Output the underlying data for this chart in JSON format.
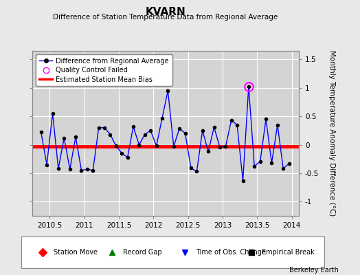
{
  "title": "KVARN",
  "subtitle": "Difference of Station Temperature Data from Regional Average",
  "ylabel_right": "Monthly Temperature Anomaly Difference (°C)",
  "background_color": "#e8e8e8",
  "plot_bg_color": "#d4d4d4",
  "grid_color": "white",
  "xlim": [
    2010.25,
    2014.1
  ],
  "ylim": [
    -1.25,
    1.65
  ],
  "yticks": [
    -1.0,
    -0.5,
    0.0,
    0.5,
    1.0,
    1.5
  ],
  "ytick_labels": [
    "-1",
    "-0.5",
    "0",
    "0.5",
    "1",
    "1.5"
  ],
  "xticks": [
    2010.5,
    2011.0,
    2011.5,
    2012.0,
    2012.5,
    2013.0,
    2013.5,
    2014.0
  ],
  "xtick_labels": [
    "2010.5",
    "2011",
    "2011.5",
    "2012",
    "2012.5",
    "2013",
    "2013.5",
    "2014"
  ],
  "bias_value": -0.03,
  "watermark": "Berkeley Earth",
  "x_values": [
    2010.375,
    2010.458,
    2010.542,
    2010.625,
    2010.708,
    2010.792,
    2010.875,
    2010.958,
    2011.042,
    2011.125,
    2011.208,
    2011.292,
    2011.375,
    2011.458,
    2011.542,
    2011.625,
    2011.708,
    2011.792,
    2011.875,
    2011.958,
    2012.042,
    2012.125,
    2012.208,
    2012.292,
    2012.375,
    2012.458,
    2012.542,
    2012.625,
    2012.708,
    2012.792,
    2012.875,
    2012.958,
    2013.042,
    2013.125,
    2013.208,
    2013.292,
    2013.375,
    2013.458,
    2013.542,
    2013.625,
    2013.708,
    2013.792,
    2013.875,
    2013.958
  ],
  "y_values": [
    0.22,
    -0.35,
    0.55,
    -0.42,
    0.12,
    -0.43,
    0.14,
    -0.45,
    -0.43,
    -0.45,
    0.3,
    0.3,
    0.18,
    -0.02,
    -0.15,
    -0.22,
    0.32,
    0.0,
    0.18,
    0.25,
    -0.02,
    0.47,
    0.95,
    -0.03,
    0.29,
    0.2,
    -0.41,
    -0.47,
    0.25,
    -0.12,
    0.31,
    -0.04,
    -0.03,
    0.43,
    0.35,
    -0.63,
    1.02,
    -0.38,
    -0.29,
    0.45,
    -0.32,
    0.35,
    -0.42,
    -0.33
  ],
  "qc_failed_x": [
    2013.375
  ],
  "qc_failed_y": [
    1.02
  ],
  "line_color": "blue",
  "marker_color": "black",
  "bias_color": "red",
  "qc_color": "magenta",
  "legend_top": [
    {
      "type": "line",
      "color": "blue",
      "marker": "o",
      "mfc": "black",
      "mec": "black",
      "ms": 4,
      "lw": 1.0,
      "label": "Difference from Regional Average"
    },
    {
      "type": "marker",
      "color": "none",
      "marker": "o",
      "mfc": "none",
      "mec": "magenta",
      "ms": 6,
      "lw": 0,
      "label": "Quality Control Failed"
    },
    {
      "type": "line",
      "color": "red",
      "marker": "none",
      "mfc": "none",
      "mec": "none",
      "ms": 0,
      "lw": 2.5,
      "label": "Estimated Station Mean Bias"
    }
  ],
  "legend_bottom": [
    {
      "marker": "D",
      "color": "red",
      "label": "Station Move"
    },
    {
      "marker": "^",
      "color": "green",
      "label": "Record Gap"
    },
    {
      "marker": "v",
      "color": "blue",
      "label": "Time of Obs. Change"
    },
    {
      "marker": "s",
      "color": "black",
      "label": "Empirical Break"
    }
  ]
}
